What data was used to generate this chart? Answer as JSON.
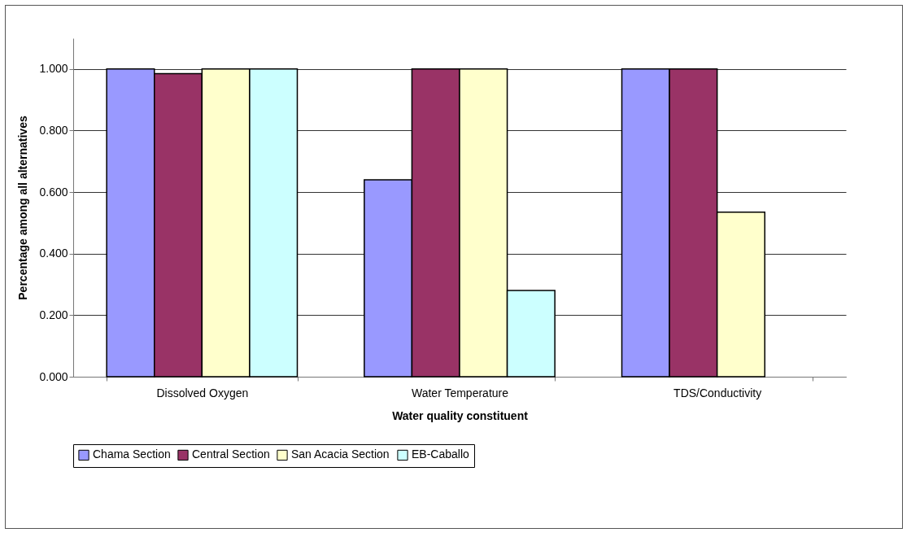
{
  "chart_data": {
    "type": "bar",
    "xlabel": "Water quality constituent",
    "ylabel": "Percentage among all alternatives",
    "categories": [
      "Dissolved Oxygen",
      "Water Temperature",
      "TDS/Conductivity"
    ],
    "series": [
      {
        "name": "Chama Section",
        "color": "#9999ff",
        "values": [
          1.0,
          0.64,
          1.0
        ]
      },
      {
        "name": "Central Section",
        "color": "#993366",
        "values": [
          0.985,
          1.0,
          1.0
        ]
      },
      {
        "name": "San Acacia Section",
        "color": "#ffffcc",
        "values": [
          1.0,
          1.0,
          0.535
        ]
      },
      {
        "name": "EB-Caballo",
        "color": "#ccffff",
        "values": [
          1.0,
          0.28,
          null
        ]
      }
    ],
    "ylim": [
      0,
      1.1
    ],
    "yticks": [
      {
        "value": 0,
        "label": "0.000"
      },
      {
        "value": 0.2,
        "label": "0.200"
      },
      {
        "value": 0.4,
        "label": "0.400"
      },
      {
        "value": 0.6,
        "label": "0.600"
      },
      {
        "value": 0.8,
        "label": "0.800"
      },
      {
        "value": 1.0,
        "label": "1.000"
      }
    ],
    "grid": "y",
    "legend": "bottom"
  }
}
